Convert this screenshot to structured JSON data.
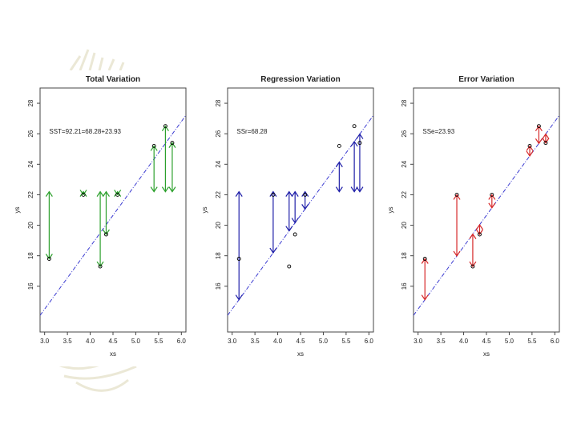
{
  "chart_data": [
    {
      "type": "scatter",
      "title": "Total Variation",
      "annotation": "SST=92.21=68.28+23.93",
      "xlabel": "xs",
      "ylabel": "ys",
      "xlim": [
        2.9,
        6.1
      ],
      "ylim": [
        13,
        29
      ],
      "xticks": [
        "3.0",
        "3.5",
        "4.0",
        "4.5",
        "5.0",
        "5.5",
        "6.0"
      ],
      "yticks": [
        "16",
        "18",
        "20",
        "22",
        "24",
        "26",
        "28"
      ],
      "x": [
        3.1,
        3.85,
        4.22,
        4.35,
        4.6,
        5.4,
        5.65,
        5.8
      ],
      "y": [
        17.8,
        22.0,
        17.3,
        19.4,
        22.0,
        25.2,
        26.5,
        25.4
      ],
      "mean_y": 22.2,
      "fit_intercept": 2.2,
      "fit_slope": 4.1,
      "segment_color": "#2ca02c",
      "point_color": "#000000",
      "line_color": "#3b3bd1"
    },
    {
      "type": "scatter",
      "title": "Regression Variation",
      "annotation": "SSr=68.28",
      "xlabel": "xs",
      "ylabel": "ys",
      "xlim": [
        2.9,
        6.1
      ],
      "ylim": [
        13,
        29
      ],
      "xticks": [
        "3.0",
        "3.5",
        "4.0",
        "4.5",
        "5.0",
        "5.5",
        "6.0"
      ],
      "yticks": [
        "16",
        "18",
        "20",
        "22",
        "24",
        "26",
        "28"
      ],
      "x": [
        3.15,
        3.9,
        4.25,
        4.38,
        4.6,
        5.35,
        5.68,
        5.8
      ],
      "y": [
        17.8,
        22.0,
        17.3,
        19.4,
        22.0,
        25.2,
        26.5,
        25.4
      ],
      "mean_y": 22.2,
      "fit_intercept": 2.2,
      "fit_slope": 4.1,
      "segment_color": "#1f1fa8",
      "point_color": "#000000",
      "line_color": "#3b3bd1"
    },
    {
      "type": "scatter",
      "title": "Error Variation",
      "annotation": "SSe=23.93",
      "xlabel": "xs",
      "ylabel": "ys",
      "xlim": [
        2.9,
        6.1
      ],
      "ylim": [
        13,
        29
      ],
      "xticks": [
        "3.0",
        "3.5",
        "4.0",
        "4.5",
        "5.0",
        "5.5",
        "6.0"
      ],
      "yticks": [
        "16",
        "18",
        "20",
        "22",
        "24",
        "26",
        "28"
      ],
      "x": [
        3.15,
        3.85,
        4.2,
        4.35,
        4.62,
        5.45,
        5.65,
        5.8
      ],
      "y": [
        17.8,
        22.0,
        17.3,
        19.4,
        22.0,
        25.2,
        26.5,
        25.4
      ],
      "mean_y": 22.2,
      "fit_intercept": 2.2,
      "fit_slope": 4.1,
      "segment_color": "#d62728",
      "point_color": "#000000",
      "line_color": "#3b3bd1"
    }
  ]
}
